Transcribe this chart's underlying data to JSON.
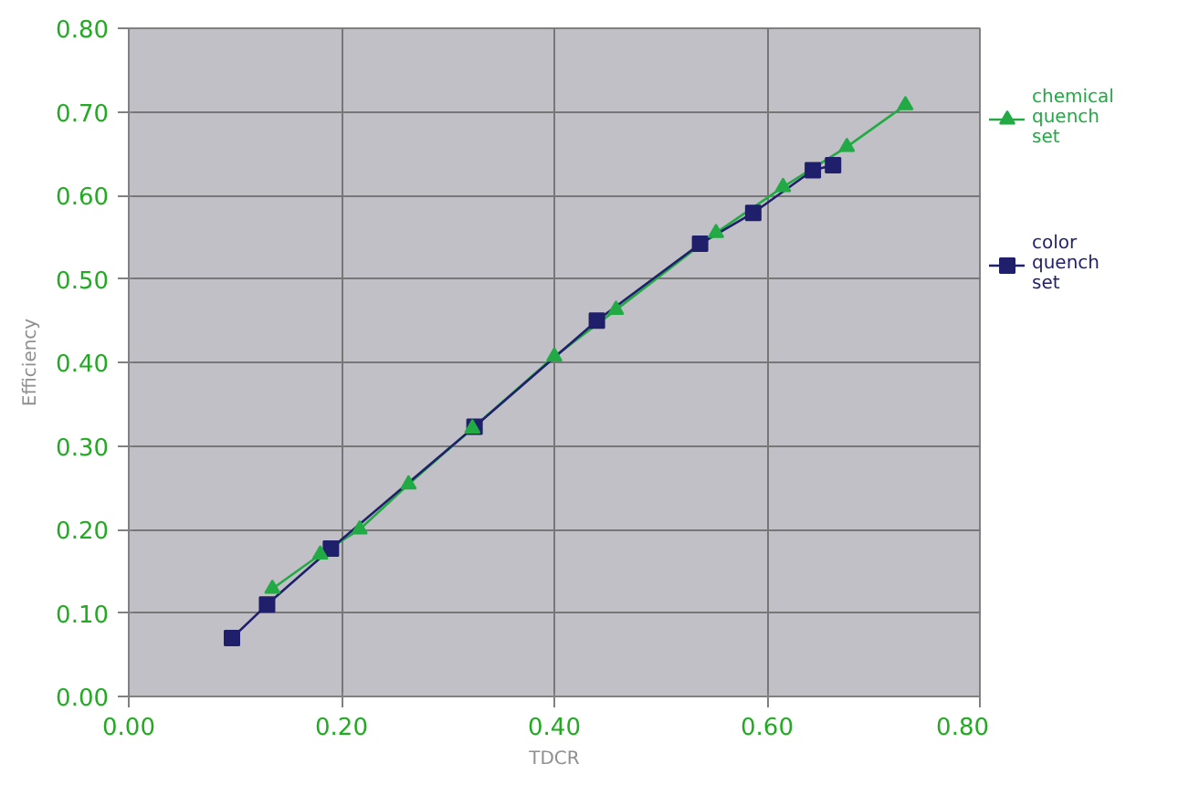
{
  "chart_data": {
    "type": "line",
    "xlabel": "TDCR",
    "ylabel": "Efficiency",
    "series": [
      {
        "name": "chemical quench set",
        "color": "#22aa44",
        "marker": "triangle",
        "x": [
          0.135,
          0.18,
          0.217,
          0.263,
          0.323,
          0.4,
          0.458,
          0.552,
          0.615,
          0.675,
          0.73
        ],
        "values": [
          0.129,
          0.17,
          0.2,
          0.254,
          0.321,
          0.407,
          0.463,
          0.555,
          0.61,
          0.658,
          0.708
        ]
      },
      {
        "name": "color quench set",
        "color": "#1f1f6b",
        "marker": "square",
        "x": [
          0.097,
          0.13,
          0.19,
          0.325,
          0.44,
          0.537,
          0.587,
          0.643,
          0.662
        ],
        "values": [
          0.07,
          0.11,
          0.177,
          0.323,
          0.45,
          0.542,
          0.579,
          0.63,
          0.636
        ]
      }
    ],
    "xlim": [
      0,
      0.8
    ],
    "ylim": [
      0,
      0.8
    ],
    "xticks": [
      {
        "value": 0,
        "label": "0.00"
      },
      {
        "value": 0.2,
        "label": "0.20"
      },
      {
        "value": 0.4,
        "label": "0.40"
      },
      {
        "value": 0.6,
        "label": "0.60"
      },
      {
        "value": 0.8,
        "label": "0.80"
      }
    ],
    "yticks": [
      {
        "value": 0,
        "label": "0.00"
      },
      {
        "value": 0.1,
        "label": "0.10"
      },
      {
        "value": 0.2,
        "label": "0.20"
      },
      {
        "value": 0.3,
        "label": "0.30"
      },
      {
        "value": 0.4,
        "label": "0.40"
      },
      {
        "value": 0.5,
        "label": "0.50"
      },
      {
        "value": 0.6,
        "label": "0.60"
      },
      {
        "value": 0.7,
        "label": "0.70"
      },
      {
        "value": 0.8,
        "label": "0.80"
      }
    ],
    "grid": true,
    "legend": "right",
    "line_style": "solid"
  }
}
